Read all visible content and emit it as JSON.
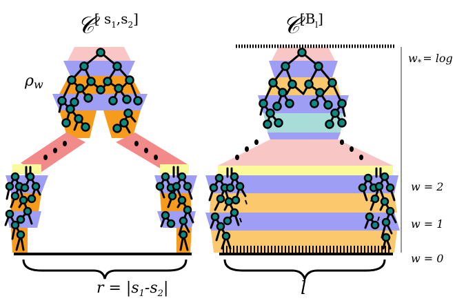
{
  "left_figure": {
    "title_base": "𝒞",
    "title_superscript": "[ s",
    "title_sub1": "1",
    "title_mid": ",s",
    "title_sub2": "2",
    "title_close": "]",
    "rho_label": "ρ",
    "rho_subscript": "w",
    "width_label_r": "r = |s",
    "width_sub1": "1",
    "width_minus": "-s",
    "width_sub2": "2",
    "width_close": "|"
  },
  "right_figure": {
    "title_base": "𝒞",
    "title_superscript": "[B",
    "title_subscript": "l",
    "title_close": "]",
    "width_label": "l"
  },
  "scale_labels": {
    "top_w": "w",
    "top_w_sub": "*",
    "top_rhs": "= log l",
    "w2": "w = 2",
    "w1": "w = 1",
    "w0": "w = 0"
  },
  "colors": {
    "pink": "#f9c6c6",
    "red_band": "#f28a8a",
    "blue": "#9e9ef5",
    "orange": "#f79b1c",
    "light_orange": "#fcc86e",
    "yellow": "#fafa9a",
    "teal": "#a8dcd8",
    "node_fill": "#0e8a80",
    "ink": "#000000"
  }
}
